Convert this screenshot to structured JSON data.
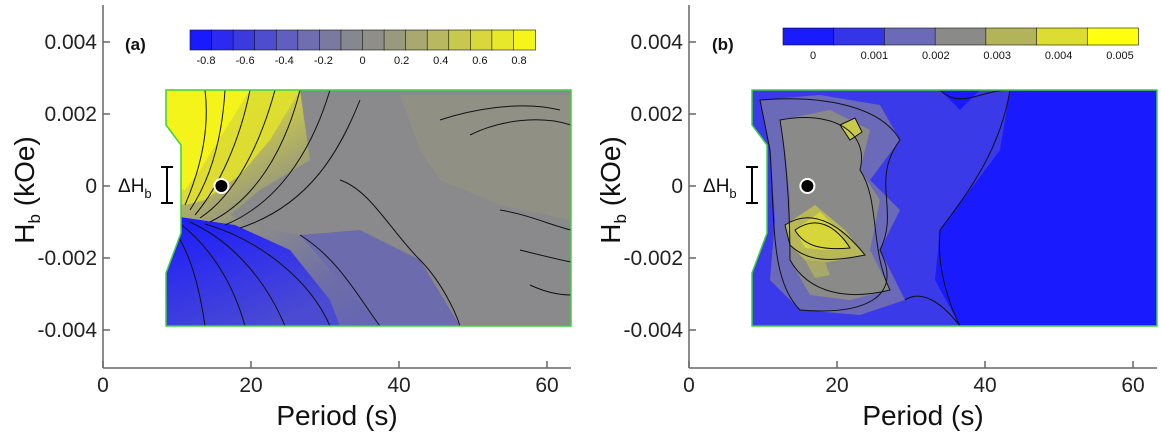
{
  "chart_data": [
    {
      "type": "heatmap",
      "panel_label": "(a)",
      "xlabel": "Period (s)",
      "ylabel": "H",
      "ylabel_sub": "b",
      "ylabel_unit": " (kOe)",
      "xlim": [
        0,
        65
      ],
      "ylim": [
        -0.005,
        0.005
      ],
      "xticks": [
        "0",
        "20",
        "40",
        "60"
      ],
      "xtick_values": [
        0,
        20,
        40,
        60
      ],
      "yticks": [
        "0.004",
        "0.002",
        "0",
        "-0.002",
        "-0.004"
      ],
      "ytick_values": [
        0.004,
        0.002,
        0,
        -0.002,
        -0.004
      ],
      "colorbar": {
        "ticks": [
          "-0.8",
          "-0.6",
          "-0.4",
          "-0.2",
          "0",
          "0.2",
          "0.4",
          "0.6",
          "0.8"
        ],
        "colors": [
          "#1a1aff",
          "#2a2af0",
          "#3a3ae0",
          "#4d4dd0",
          "#5f5fc0",
          "#6e6eb0",
          "#7a7aa0",
          "#878790",
          "#8f8f88",
          "#999980",
          "#a8a870",
          "#b8b860",
          "#c8c84e",
          "#d8d83c",
          "#e8e82a",
          "#f5f51a"
        ]
      },
      "marker": {
        "x": 16,
        "y": 0
      },
      "bracket_label": "ΔH",
      "bracket_sub": "b",
      "bracket_halfwidth": 0.0002
    },
    {
      "type": "heatmap",
      "panel_label": "(b)",
      "xlabel": "Period (s)",
      "ylabel": "H",
      "ylabel_sub": "b",
      "ylabel_unit": " (kOe)",
      "xlim": [
        0,
        65
      ],
      "ylim": [
        -0.005,
        0.005
      ],
      "xticks": [
        "0",
        "20",
        "40",
        "60"
      ],
      "xtick_values": [
        0,
        20,
        40,
        60
      ],
      "yticks": [
        "0.004",
        "0.002",
        "0",
        "-0.002",
        "-0.004"
      ],
      "ytick_values": [
        0.004,
        0.002,
        0,
        -0.002,
        -0.004
      ],
      "colorbar": {
        "ticks": [
          "0",
          "0.001",
          "0.002",
          "0.003",
          "0.004",
          "0.005"
        ],
        "colors": [
          "#1a1aff",
          "#3535e8",
          "#6a6ab8",
          "#8a8a88",
          "#b3b35a",
          "#dcdc32",
          "#ffff10"
        ]
      },
      "marker": {
        "x": 16,
        "y": 0
      },
      "bracket_label": "ΔH",
      "bracket_sub": "b",
      "bracket_halfwidth": 0.0002
    }
  ]
}
